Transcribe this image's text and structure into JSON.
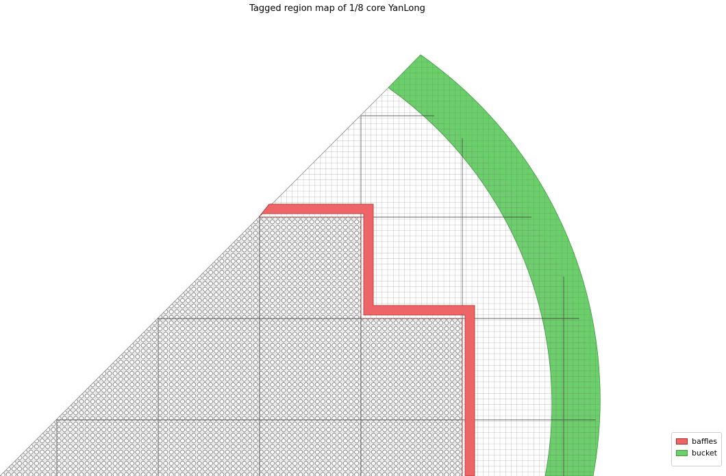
{
  "title": "Tagged region map of 1/8 core YanLong",
  "colors": {
    "baffles_fill": "#ed6567",
    "baffles_edge": "#b02a2c",
    "bucket_fill": "#6ccf6c",
    "bucket_edge": "#3d9a3d",
    "grid": "#555555",
    "assembly": "#222222"
  },
  "legend": {
    "placement": "lower-right",
    "items": [
      {
        "label": "baffles",
        "color": "#ed6567"
      },
      {
        "label": "bucket",
        "color": "#6ccf6c"
      }
    ]
  }
}
